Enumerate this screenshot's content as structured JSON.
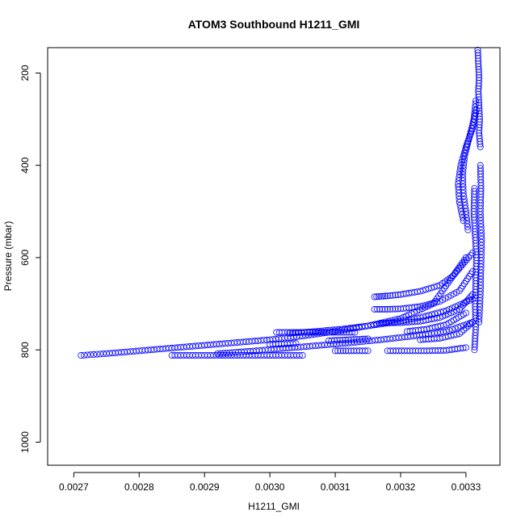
{
  "chart_data": {
    "type": "scatter",
    "title": "ATOM3 Southbound H1211_GMI",
    "xlabel": "H1211_GMI",
    "ylabel": "Pressure (mbar)",
    "xlim": [
      0.00266,
      0.003352
    ],
    "ylim": [
      1050,
      145
    ],
    "y_reversed": true,
    "grid": false,
    "legend": "none",
    "marker": "open-circle",
    "marker_color": "#0000ff",
    "x_ticks": [
      {
        "value": 0.0027,
        "label": "0.0027"
      },
      {
        "value": 0.0028,
        "label": "0.0028"
      },
      {
        "value": 0.0029,
        "label": "0.0029"
      },
      {
        "value": 0.003,
        "label": "0.0030"
      },
      {
        "value": 0.0031,
        "label": "0.0031"
      },
      {
        "value": 0.0032,
        "label": "0.0032"
      },
      {
        "value": 0.0033,
        "label": "0.0033"
      }
    ],
    "y_ticks": [
      {
        "value": 200,
        "label": "200"
      },
      {
        "value": 400,
        "label": "400"
      },
      {
        "value": 600,
        "label": "600"
      },
      {
        "value": 800,
        "label": "800"
      },
      {
        "value": 1000,
        "label": "1000"
      }
    ],
    "series": [
      {
        "x": [
          0.003318,
          0.003319,
          0.00332,
          0.003319,
          0.00332,
          0.003321,
          0.00332,
          0.003322
        ],
        "y": [
          150,
          180,
          210,
          240,
          270,
          300,
          330,
          360
        ]
      },
      {
        "x": [
          0.003315,
          0.003312,
          0.003305,
          0.003298,
          0.003295,
          0.003296,
          0.0033,
          0.003303
        ],
        "y": [
          260,
          300,
          340,
          380,
          420,
          460,
          500,
          540
        ]
      },
      {
        "x": [
          0.003316,
          0.00331,
          0.0033,
          0.003292,
          0.003288,
          0.00329,
          0.003296
        ],
        "y": [
          280,
          320,
          360,
          400,
          440,
          480,
          520
        ]
      },
      {
        "x": [
          0.003313,
          0.003312,
          0.003314,
          0.003316,
          0.003315,
          0.003314,
          0.003315,
          0.003313
        ],
        "y": [
          450,
          500,
          550,
          600,
          650,
          700,
          750,
          800
        ]
      },
      {
        "x": [
          0.003322,
          0.003323,
          0.003322,
          0.003324,
          0.003323,
          0.003322,
          0.00332
        ],
        "y": [
          400,
          450,
          500,
          560,
          620,
          680,
          740
        ]
      },
      {
        "x": [
          0.002711,
          0.00275,
          0.0028,
          0.00285,
          0.0029,
          0.00295,
          0.003,
          0.00305,
          0.0031,
          0.00315,
          0.0032,
          0.00325,
          0.0033
        ],
        "y": [
          812,
          808,
          802,
          796,
          790,
          784,
          778,
          770,
          760,
          748,
          732,
          700,
          600
        ]
      },
      {
        "x": [
          0.00285,
          0.0029,
          0.00295,
          0.003,
          0.00305
        ],
        "y": [
          812,
          812,
          812,
          812,
          812
        ]
      },
      {
        "x": [
          0.00292,
          0.00297,
          0.00302,
          0.00307,
          0.00312,
          0.00317,
          0.00322,
          0.00327,
          0.00331
        ],
        "y": [
          808,
          803,
          797,
          791,
          785,
          778,
          770,
          760,
          740
        ]
      },
      {
        "x": [
          0.00301,
          0.00304,
          0.00307,
          0.0031,
          0.00313
        ],
        "y": [
          762,
          762,
          762,
          762,
          762
        ]
      },
      {
        "x": [
          0.00303,
          0.00307,
          0.00311,
          0.00315,
          0.00319,
          0.00323,
          0.00327,
          0.00331
        ],
        "y": [
          764,
          760,
          755,
          748,
          740,
          730,
          715,
          690
        ]
      },
      {
        "x": [
          0.00309,
          0.00312,
          0.00315
        ],
        "y": [
          780,
          778,
          776
        ]
      },
      {
        "x": [
          0.003,
          0.00304
        ],
        "y": [
          788,
          786
        ]
      },
      {
        "x": [
          0.0031,
          0.00312,
          0.00315
        ],
        "y": [
          802,
          802,
          802
        ]
      },
      {
        "x": [
          0.00318,
          0.00321,
          0.00324,
          0.00327,
          0.0033
        ],
        "y": [
          802,
          802,
          802,
          801,
          795
        ]
      },
      {
        "x": [
          0.00316,
          0.00317,
          0.00318,
          0.0032,
          0.00323,
          0.00326,
          0.00328,
          0.00331
        ],
        "y": [
          685,
          684,
          683,
          680,
          673,
          660,
          640,
          590
        ]
      },
      {
        "x": [
          0.00316,
          0.00318,
          0.0032,
          0.00323,
          0.00326,
          0.00329,
          0.00331
        ],
        "y": [
          712,
          712,
          711,
          706,
          695,
          672,
          630
        ]
      },
      {
        "x": [
          0.00317,
          0.0032,
          0.00323,
          0.00326,
          0.00329,
          0.00331
        ],
        "y": [
          742,
          741,
          738,
          730,
          712,
          680
        ]
      },
      {
        "x": [
          0.00321,
          0.00324,
          0.00327,
          0.0033
        ],
        "y": [
          760,
          755,
          745,
          720
        ]
      },
      {
        "x": [
          0.00323,
          0.00326,
          0.00329,
          0.00331
        ],
        "y": [
          778,
          775,
          765,
          740
        ]
      }
    ]
  }
}
